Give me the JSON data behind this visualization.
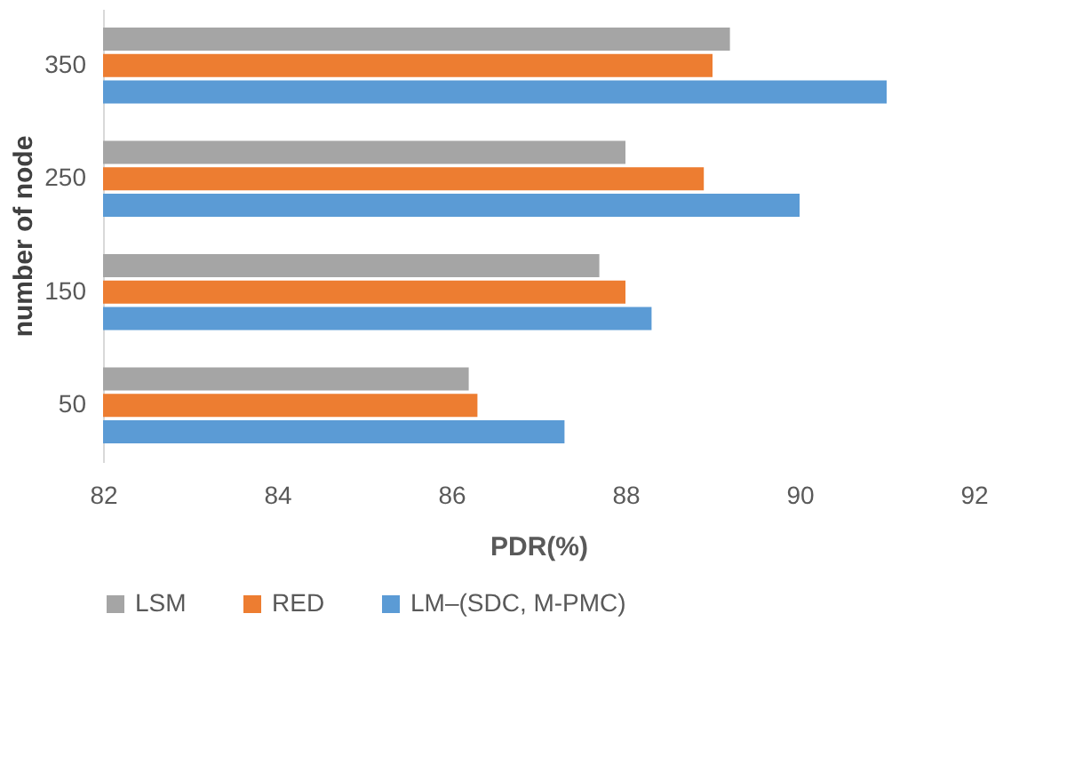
{
  "chart_data": {
    "type": "bar",
    "orientation": "horizontal",
    "xlabel": "PDR(%)",
    "ylabel": "number of node",
    "categories": [
      "350",
      "250",
      "150",
      "50"
    ],
    "series": [
      {
        "name": "LSM",
        "color": "#a5a5a5",
        "values": [
          89.2,
          88.0,
          87.7,
          86.2
        ]
      },
      {
        "name": "RED",
        "color": "#ed7d31",
        "values": [
          89.0,
          88.9,
          88.0,
          86.3
        ]
      },
      {
        "name": "LM–(SDC, M-PMC)",
        "color": "#5b9bd5",
        "values": [
          91.0,
          90.0,
          88.3,
          87.3
        ]
      }
    ],
    "xlim": [
      82,
      92
    ],
    "xticks": [
      82,
      84,
      86,
      88,
      90,
      92
    ],
    "grid": false,
    "legend": "bottom"
  }
}
